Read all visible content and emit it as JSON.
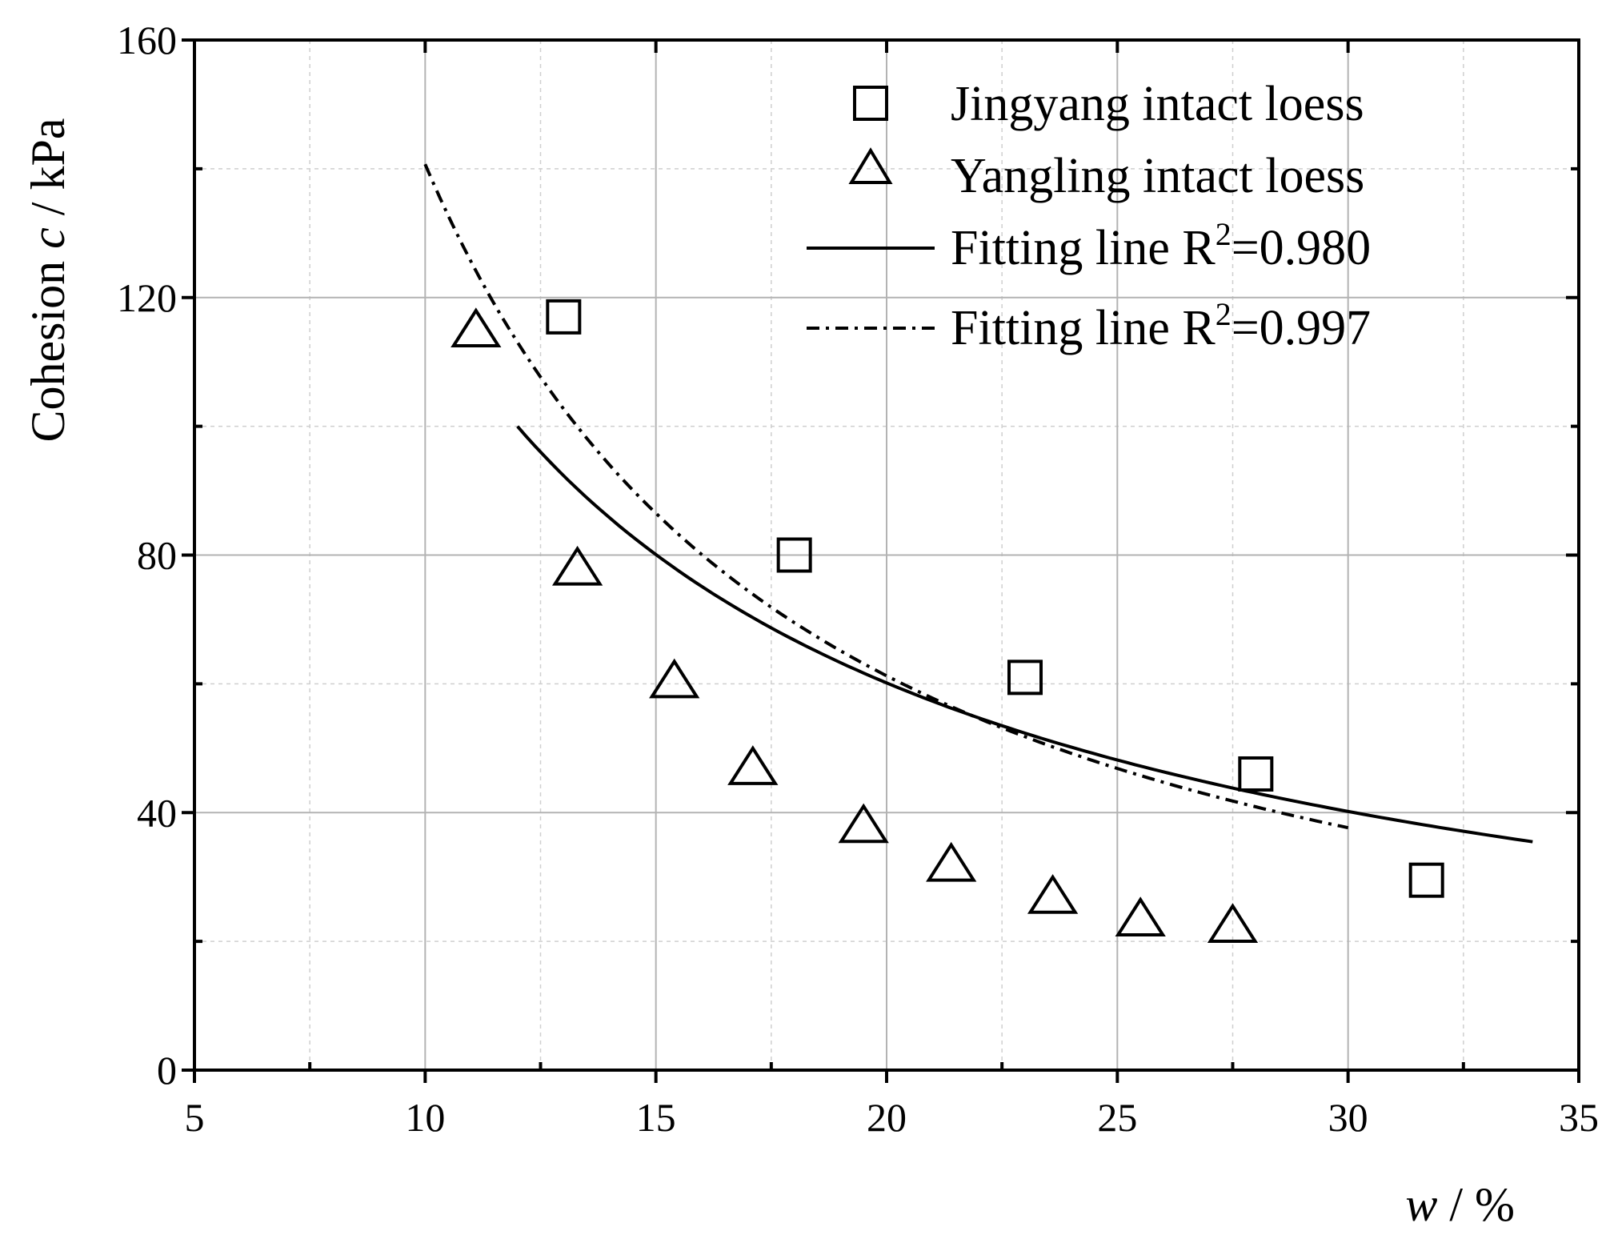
{
  "chart_data": {
    "type": "scatter",
    "title": "",
    "xlabel": "w / %",
    "xlabel_var": "w",
    "xlabel_unit": " / %",
    "ylabel": "Cohesion c / kPa",
    "ylabel_prefix": "Cohesion ",
    "ylabel_var": "c",
    "ylabel_unit": " / kPa",
    "xlim": [
      5,
      35
    ],
    "ylim": [
      0,
      160
    ],
    "xticks": [
      5,
      10,
      15,
      20,
      25,
      30,
      35
    ],
    "yticks": [
      0,
      40,
      80,
      120,
      160
    ],
    "grid": true,
    "legend_position": "top-right",
    "series": [
      {
        "name": "Jingyang intact loess",
        "kind": "points",
        "marker": "square",
        "x": [
          13.0,
          18.0,
          23.0,
          28.0,
          31.7
        ],
        "y": [
          117,
          80,
          61,
          46,
          29.5
        ]
      },
      {
        "name": "Yangling intact loess",
        "kind": "points",
        "marker": "triangle",
        "x": [
          11.1,
          13.3,
          15.4,
          17.1,
          19.5,
          21.4,
          23.6,
          25.5,
          27.5
        ],
        "y": [
          115,
          78,
          60.5,
          47,
          38,
          32,
          27,
          23.5,
          22.5
        ]
      },
      {
        "name": "Fitting line R²=0.980",
        "label_main": "Fitting line R",
        "label_sup": "2",
        "label_tail": "=0.980",
        "kind": "line",
        "style": "solid",
        "model": "power",
        "a": 1185,
        "b": -0.995,
        "x_range": [
          12,
          34
        ]
      },
      {
        "name": "Fitting line R²=0.997",
        "label_main": "Fitting line R",
        "label_sup": "2",
        "label_tail": "=0.997",
        "kind": "line",
        "style": "dash-dot",
        "model": "power",
        "a": 2230,
        "b": -1.2,
        "x_range": [
          10,
          30
        ]
      }
    ]
  }
}
